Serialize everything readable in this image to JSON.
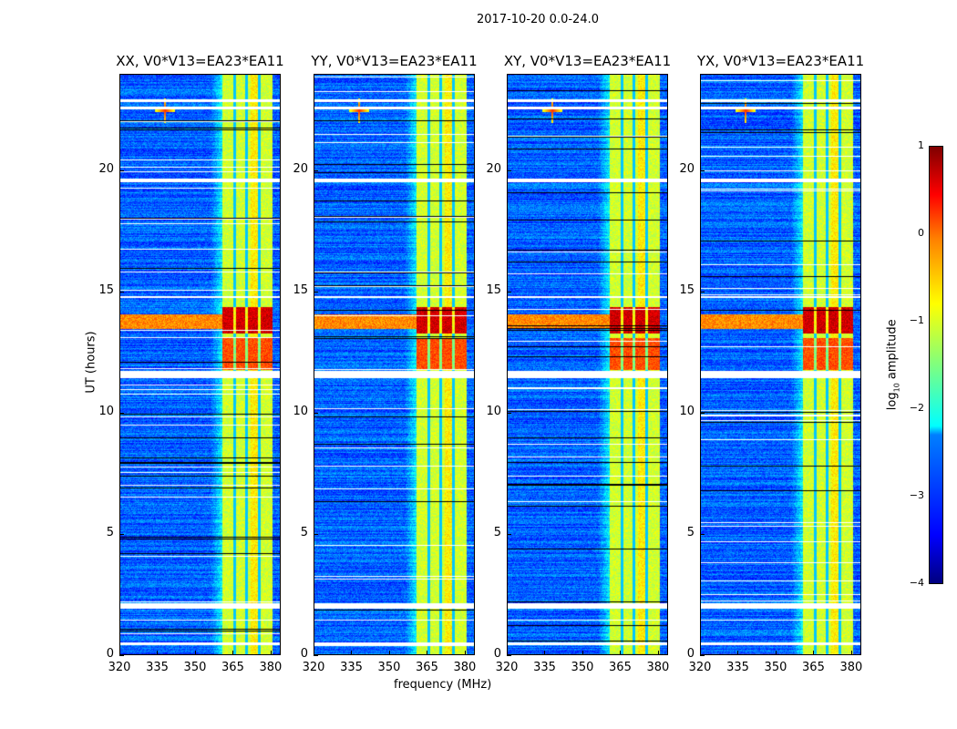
{
  "chart_data": {
    "type": "heatmap",
    "title": "2017-10-20 0.0-24.0",
    "xlabel": "frequency (MHz)",
    "ylabel": "UT (hours)",
    "xlim": [
      320,
      384
    ],
    "ylim": [
      0,
      24
    ],
    "xticks": [
      "320",
      "335",
      "350",
      "365",
      "380"
    ],
    "yticks": [
      "0",
      "5",
      "10",
      "15",
      "20"
    ],
    "panels": [
      {
        "title": "XX, V0*V13=EA23*EA11"
      },
      {
        "title": "YY, V0*V13=EA23*EA11"
      },
      {
        "title": "XY, V0*V13=EA23*EA11"
      },
      {
        "title": "YX, V0*V13=EA23*EA11"
      }
    ],
    "colorbar": {
      "label_prefix": "log",
      "label_sub": "10",
      "label_suffix": " amplitude",
      "colormap": "jet",
      "range": [
        -4,
        1
      ],
      "ticks": [
        "1",
        "0",
        "−1",
        "−2",
        "−3",
        "−4"
      ]
    },
    "features": {
      "background_level": -2.9,
      "rfi_band_mhz": [
        360.5,
        380.5
      ],
      "rfi_band_level": -1.1,
      "rfi_subband_gaps_mhz": [
        365.5,
        370.2,
        375.2
      ],
      "strong_rfi_hours": [
        [
          11.8,
          13.1,
          0.0
        ],
        [
          13.3,
          14.4,
          0.6
        ]
      ],
      "flagged_hours": [
        [
          0.45,
          0.55
        ],
        [
          1.45,
          1.5
        ],
        [
          1.95,
          2.15
        ],
        [
          11.45,
          11.75
        ],
        [
          14.75,
          14.85
        ],
        [
          19.55,
          19.7
        ],
        [
          22.55,
          22.65
        ],
        [
          22.85,
          22.95
        ]
      ],
      "point_source": {
        "freq_mhz": 338,
        "hour": 22.5
      }
    }
  }
}
